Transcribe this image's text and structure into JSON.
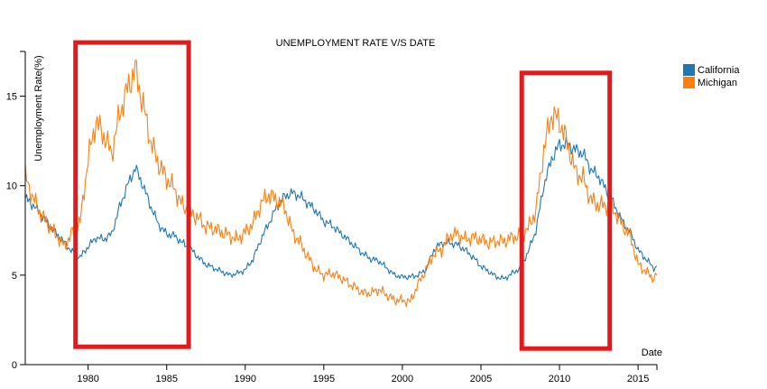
{
  "chart_data": {
    "type": "line",
    "title": "UNEMPLOYMENT RATE V/S DATE",
    "xlabel": "Date",
    "ylabel": "Unemployment Rate(%)",
    "xlim": [
      1976,
      2016.2
    ],
    "ylim": [
      0,
      17.5
    ],
    "x_ticks": [
      1980,
      1985,
      1990,
      1995,
      2000,
      2005,
      2010,
      2015
    ],
    "y_ticks": [
      0,
      5,
      10,
      15
    ],
    "legend_position": "top-right",
    "colors": {
      "california": "#1f77b4",
      "michigan": "#ff7f0e",
      "highlight": "#e31a1c"
    },
    "series": [
      {
        "name": "California",
        "color": "#1f77b4",
        "points": [
          [
            1976.0,
            9.3
          ],
          [
            1976.5,
            8.9
          ],
          [
            1977.0,
            8.4
          ],
          [
            1977.5,
            7.8
          ],
          [
            1978.0,
            7.3
          ],
          [
            1978.5,
            6.8
          ],
          [
            1979.0,
            6.3
          ],
          [
            1979.5,
            6.0
          ],
          [
            1980.0,
            6.6
          ],
          [
            1980.5,
            7.1
          ],
          [
            1981.0,
            7.0
          ],
          [
            1981.5,
            7.3
          ],
          [
            1982.0,
            8.8
          ],
          [
            1982.5,
            10.0
          ],
          [
            1983.0,
            11.0
          ],
          [
            1983.5,
            10.0
          ],
          [
            1984.0,
            8.8
          ],
          [
            1984.5,
            7.8
          ],
          [
            1985.0,
            7.3
          ],
          [
            1985.5,
            7.2
          ],
          [
            1986.0,
            6.8
          ],
          [
            1986.5,
            6.5
          ],
          [
            1987.0,
            6.0
          ],
          [
            1987.5,
            5.6
          ],
          [
            1988.0,
            5.4
          ],
          [
            1988.5,
            5.2
          ],
          [
            1989.0,
            5.0
          ],
          [
            1989.5,
            5.1
          ],
          [
            1990.0,
            5.3
          ],
          [
            1990.5,
            5.9
          ],
          [
            1991.0,
            7.0
          ],
          [
            1991.5,
            7.9
          ],
          [
            1992.0,
            8.8
          ],
          [
            1992.5,
            9.4
          ],
          [
            1993.0,
            9.6
          ],
          [
            1993.5,
            9.4
          ],
          [
            1994.0,
            9.0
          ],
          [
            1994.5,
            8.6
          ],
          [
            1995.0,
            8.0
          ],
          [
            1995.5,
            7.8
          ],
          [
            1996.0,
            7.4
          ],
          [
            1996.5,
            7.0
          ],
          [
            1997.0,
            6.6
          ],
          [
            1997.5,
            6.2
          ],
          [
            1998.0,
            5.9
          ],
          [
            1998.5,
            5.8
          ],
          [
            1999.0,
            5.4
          ],
          [
            1999.5,
            5.0
          ],
          [
            2000.0,
            4.9
          ],
          [
            2000.5,
            4.9
          ],
          [
            2001.0,
            5.0
          ],
          [
            2001.5,
            5.3
          ],
          [
            2002.0,
            6.4
          ],
          [
            2002.5,
            6.8
          ],
          [
            2003.0,
            6.8
          ],
          [
            2003.5,
            6.7
          ],
          [
            2004.0,
            6.4
          ],
          [
            2004.5,
            6.0
          ],
          [
            2005.0,
            5.5
          ],
          [
            2005.5,
            5.2
          ],
          [
            2006.0,
            4.9
          ],
          [
            2006.5,
            4.8
          ],
          [
            2007.0,
            5.1
          ],
          [
            2007.5,
            5.4
          ],
          [
            2008.0,
            6.3
          ],
          [
            2008.5,
            7.5
          ],
          [
            2009.0,
            10.0
          ],
          [
            2009.5,
            11.5
          ],
          [
            2010.0,
            12.3
          ],
          [
            2010.5,
            12.3
          ],
          [
            2011.0,
            12.0
          ],
          [
            2011.5,
            11.8
          ],
          [
            2012.0,
            10.9
          ],
          [
            2012.5,
            10.5
          ],
          [
            2013.0,
            9.7
          ],
          [
            2013.5,
            8.9
          ],
          [
            2014.0,
            8.0
          ],
          [
            2014.5,
            7.4
          ],
          [
            2015.0,
            6.4
          ],
          [
            2015.5,
            5.9
          ],
          [
            2016.0,
            5.4
          ],
          [
            2016.2,
            5.5
          ]
        ]
      },
      {
        "name": "Michigan",
        "color": "#ff7f0e",
        "points": [
          [
            1976.0,
            10.5
          ],
          [
            1976.5,
            9.3
          ],
          [
            1977.0,
            8.4
          ],
          [
            1977.5,
            7.8
          ],
          [
            1978.0,
            7.2
          ],
          [
            1978.5,
            6.6
          ],
          [
            1979.0,
            7.4
          ],
          [
            1979.5,
            8.0
          ],
          [
            1980.0,
            11.5
          ],
          [
            1980.5,
            13.6
          ],
          [
            1981.0,
            12.8
          ],
          [
            1981.5,
            11.8
          ],
          [
            1982.0,
            14.0
          ],
          [
            1982.5,
            15.4
          ],
          [
            1983.0,
            16.5
          ],
          [
            1983.5,
            14.5
          ],
          [
            1984.0,
            12.4
          ],
          [
            1984.5,
            11.2
          ],
          [
            1985.0,
            10.4
          ],
          [
            1985.5,
            9.8
          ],
          [
            1986.0,
            8.9
          ],
          [
            1986.5,
            8.5
          ],
          [
            1987.0,
            8.2
          ],
          [
            1987.5,
            7.7
          ],
          [
            1988.0,
            7.6
          ],
          [
            1988.5,
            7.4
          ],
          [
            1989.0,
            7.2
          ],
          [
            1989.5,
            7.0
          ],
          [
            1990.0,
            7.4
          ],
          [
            1990.5,
            7.9
          ],
          [
            1991.0,
            9.0
          ],
          [
            1991.5,
            9.5
          ],
          [
            1992.0,
            9.2
          ],
          [
            1992.5,
            8.8
          ],
          [
            1993.0,
            7.4
          ],
          [
            1993.5,
            6.8
          ],
          [
            1994.0,
            6.0
          ],
          [
            1994.5,
            5.3
          ],
          [
            1995.0,
            5.0
          ],
          [
            1995.5,
            5.1
          ],
          [
            1996.0,
            4.9
          ],
          [
            1996.5,
            4.6
          ],
          [
            1997.0,
            4.3
          ],
          [
            1997.5,
            4.0
          ],
          [
            1998.0,
            4.0
          ],
          [
            1998.5,
            4.2
          ],
          [
            1999.0,
            3.9
          ],
          [
            1999.5,
            3.6
          ],
          [
            2000.0,
            3.6
          ],
          [
            2000.5,
            3.5
          ],
          [
            2001.0,
            4.5
          ],
          [
            2001.5,
            5.3
          ],
          [
            2002.0,
            6.2
          ],
          [
            2002.5,
            6.4
          ],
          [
            2003.0,
            7.2
          ],
          [
            2003.5,
            7.3
          ],
          [
            2004.0,
            7.0
          ],
          [
            2004.5,
            7.1
          ],
          [
            2005.0,
            7.0
          ],
          [
            2005.5,
            6.8
          ],
          [
            2006.0,
            6.9
          ],
          [
            2006.5,
            6.9
          ],
          [
            2007.0,
            7.1
          ],
          [
            2007.5,
            7.2
          ],
          [
            2008.0,
            7.6
          ],
          [
            2008.5,
            8.6
          ],
          [
            2009.0,
            12.0
          ],
          [
            2009.5,
            14.0
          ],
          [
            2010.0,
            13.6
          ],
          [
            2010.5,
            12.4
          ],
          [
            2011.0,
            10.8
          ],
          [
            2011.5,
            10.4
          ],
          [
            2012.0,
            9.2
          ],
          [
            2012.5,
            8.9
          ],
          [
            2013.0,
            8.9
          ],
          [
            2013.5,
            8.6
          ],
          [
            2014.0,
            7.8
          ],
          [
            2014.5,
            7.2
          ],
          [
            2015.0,
            5.6
          ],
          [
            2015.5,
            5.2
          ],
          [
            2016.0,
            4.8
          ],
          [
            2016.2,
            5.0
          ]
        ]
      }
    ],
    "highlights": [
      {
        "x0": 1979.2,
        "x1": 1986.4,
        "y0": 1.0,
        "y1": 18.0
      },
      {
        "x0": 2007.6,
        "x1": 2013.2,
        "y0": 0.9,
        "y1": 16.3
      }
    ]
  }
}
